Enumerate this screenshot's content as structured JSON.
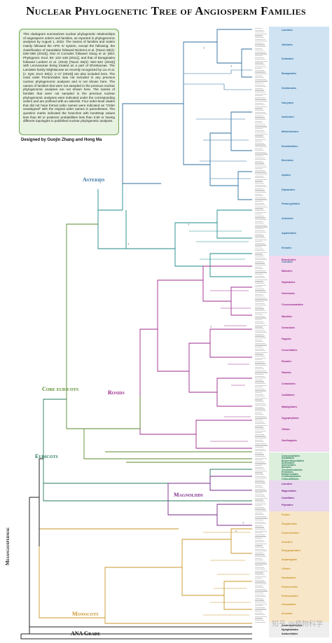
{
  "title": "Nuclear Phylogenetic Tree of Angiosperm Families",
  "info_text": "This cladogram summarizes nuclear phylogenetic relationships of angiosperm orders and families, as reported in phylogenomic analyses by August 1, 2023. The names of families and orders mainly followed the APG IV system, except the following: the classification of Santalales followed Nickrent et al. [Taxon 59(2): 538–558 (2010)], that of Cornales followed Xiang et al. [Mol. Phylogenet. Evol. 59: 123–138 (2011)], and that of Boraginales followed Luebert et al. (2016) [Taxon 65(3): 502–522 (2016)] with Lennoaceae being treated as a part of Ehretiaceae. The Lamiales family Wightiaceae as recently recognized by Liu et al. [J. Syst. Evol. 58(1): 1–17 (2019)] are also included here. The rosid order Picramniales was not included in any previous nuclear phylogenomic analyses and is not shown here. The names of families that were not sampled in the previous nuclear phylogenomic analyses are not shown here. The names of families that were not sampled in the previous nuclear phylogenomic analyses were indicated under the corresponding orders and are prefixed with an asterisk. Four order-level clades that did not have formal order names were indicated as \"Order unassigned\" with the original order names in parentheses. The question marks indicated the branches with bootstrap values less than 80 or posterior probabilities less than 0.90 or having different topologies in published nuclear phylogenetic analyses.",
  "designer": "Designed by Guojin Zhang and Hong Ma",
  "clades": {
    "asterids": "Asterids",
    "rosids": "Rosids",
    "core_eudicots": "Core eudicots",
    "eudicots": "Eudicots",
    "mesangiospermae": "Mesangiospermae",
    "magnoliids": "Magnoliids",
    "monocots": "Monocots",
    "ana_grade": "ANA Grade"
  },
  "colors": {
    "asterids": "#2f6e9e",
    "teal": "#1f8a8a",
    "rosids": "#9c2a8c",
    "core_eudicots": "#5a8a2a",
    "eudicots": "#2a7a5a",
    "magnoliids": "#7a2a8a",
    "monocots": "#c8962a",
    "ana": "#222222",
    "family_red": "#d22a2a",
    "asterid_panel": "#cfe3f3",
    "rosid_panel": "#f3d8ef",
    "monocot_panel": "#f8e6c8",
    "magnoliid_panel": "#ead8f0"
  },
  "watermark": "知乎 @植物科学",
  "order_groups": [
    {
      "panel": "asterid",
      "orders": [
        "Lamiales",
        "Vahliales",
        "Solanales",
        "Boraginales",
        "Gentianales",
        "Garryales",
        "Icacinales",
        "Metteniusales",
        "Escalloniales",
        "Bruniales",
        "Apiales",
        "Dipsacales",
        "Paracryphiales",
        "Asterales",
        "Aquifoliales",
        "Ericales",
        "Cornales"
      ]
    },
    {
      "panel": "rosid",
      "orders": [
        "Brassicales",
        "Malvales",
        "Sapindales",
        "Huerteales",
        "Crossosomatales",
        "Myrtales",
        "Geraniales",
        "Fagales",
        "Cucurbitales",
        "Rosales",
        "Fabales",
        "Celastrales",
        "Oxalidales",
        "Malpighiales",
        "Zygophyllales",
        "Vitales",
        "Saxifragales"
      ]
    },
    {
      "panel": "basal",
      "orders": [
        "Caryophyllales",
        "Santalales",
        "Berberidopsidales",
        "Dilleniales",
        "Gunnerales",
        "Buxales",
        "Trochodendrales",
        "Proteales",
        "Ranunculales",
        "Ceratophyllales",
        "Chloranthales"
      ]
    },
    {
      "panel": "magnoliid",
      "orders": [
        "Laurales",
        "Magnoliales",
        "Canellales",
        "Piperales"
      ]
    },
    {
      "panel": "monocot",
      "orders": [
        "Poales",
        "Zingiberales",
        "Commelinales",
        "Arecales",
        "Dasypogonales",
        "Asparagales",
        "Liliales",
        "Pandanales",
        "Dioscoreales",
        "Petrosaviales",
        "Alismatales",
        "Acorales"
      ]
    },
    {
      "panel": "ana",
      "orders": [
        "Austrobaileyales",
        "Nymphaeales",
        "Amborellales"
      ]
    }
  ]
}
